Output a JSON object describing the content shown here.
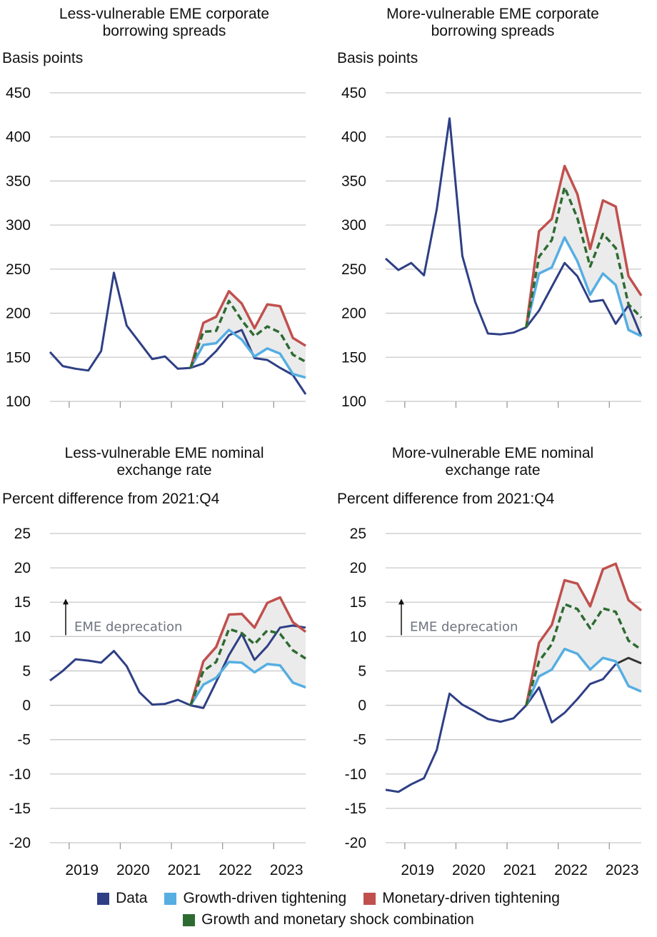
{
  "colors": {
    "data": "#2e3f85",
    "growth": "#56aee2",
    "monetary": "#c0504d",
    "combo": "#2e6b32",
    "band": "#ebebeb",
    "grid": "#c8c8c8",
    "late_data": "#333333"
  },
  "legend": {
    "data": "Data",
    "growth": "Growth-driven tightening",
    "monetary": "Monetary-driven tightening",
    "combo": "Growth and monetary shock combination"
  },
  "x_tick_labels": [
    "2019",
    "2020",
    "2021",
    "2022",
    "2023"
  ],
  "chart_data": [
    {
      "type": "line",
      "title": "Less-vulnerable EME corporate borrowing spreads",
      "ylabel": "Basis points",
      "ylim": [
        100,
        450
      ],
      "yticks": [
        100,
        150,
        200,
        250,
        300,
        350,
        400,
        450
      ],
      "series": [
        {
          "name": "Data",
          "color_key": "data",
          "start_q": 0,
          "values": [
            156,
            140,
            137,
            135,
            157,
            246,
            186,
            167,
            148,
            151,
            137,
            138,
            143,
            157,
            175,
            181,
            149,
            147,
            138,
            130,
            108
          ]
        },
        {
          "name": "Growth-driven tightening",
          "color_key": "growth",
          "start_q": 11,
          "values": [
            138,
            164,
            166,
            181,
            170,
            151,
            160,
            154,
            131,
            127
          ]
        },
        {
          "name": "Monetary-driven tightening",
          "color_key": "monetary",
          "start_q": 11,
          "values": [
            138,
            189,
            196,
            225,
            211,
            183,
            210,
            208,
            172,
            163
          ]
        },
        {
          "name": "Growth and monetary shock combination",
          "color_key": "combo",
          "start_q": 11,
          "values": [
            138,
            179,
            180,
            214,
            192,
            174,
            185,
            178,
            153,
            145
          ]
        }
      ]
    },
    {
      "type": "line",
      "title": "More-vulnerable EME corporate borrowing spreads",
      "ylabel": "Basis points",
      "ylim": [
        100,
        450
      ],
      "yticks": [
        100,
        150,
        200,
        250,
        300,
        350,
        400,
        450
      ],
      "series": [
        {
          "name": "Data",
          "color_key": "data",
          "start_q": 0,
          "values": [
            262,
            249,
            257,
            243,
            318,
            421,
            265,
            213,
            177,
            176,
            178,
            184,
            203,
            230,
            257,
            242,
            213,
            215,
            188,
            209,
            174
          ]
        },
        {
          "name": "Growth-driven tightening",
          "color_key": "growth",
          "start_q": 11,
          "values": [
            184,
            245,
            252,
            286,
            259,
            221,
            245,
            232,
            181,
            174
          ]
        },
        {
          "name": "Monetary-driven tightening",
          "color_key": "monetary",
          "start_q": 11,
          "values": [
            184,
            293,
            307,
            367,
            335,
            273,
            328,
            321,
            242,
            220
          ]
        },
        {
          "name": "Growth and monetary shock combination",
          "color_key": "combo",
          "start_q": 11,
          "values": [
            184,
            264,
            283,
            343,
            308,
            253,
            290,
            274,
            210,
            195
          ]
        }
      ]
    },
    {
      "type": "line",
      "title": "Less-vulnerable EME nominal exchange rate",
      "ylabel": "Percent difference from 2021:Q4",
      "annotation": "EME deprecation",
      "ylim": [
        -20,
        25
      ],
      "yticks": [
        -20,
        -15,
        -10,
        -5,
        0,
        5,
        10,
        15,
        20,
        25
      ],
      "series": [
        {
          "name": "Data",
          "color_key": "data",
          "start_q": 0,
          "values": [
            3.6,
            5.0,
            6.7,
            6.5,
            6.2,
            7.9,
            5.7,
            1.9,
            0.1,
            0.2,
            0.8,
            0.0,
            -0.4,
            3.4,
            7.3,
            10.4,
            6.6,
            8.6,
            11.3,
            11.6,
            11.3
          ]
        },
        {
          "name": "Growth-driven tightening",
          "color_key": "growth",
          "start_q": 11,
          "values": [
            0.0,
            3.0,
            4.0,
            6.3,
            6.2,
            4.8,
            6.0,
            5.8,
            3.3,
            2.6
          ]
        },
        {
          "name": "Monetary-driven tightening",
          "color_key": "monetary",
          "start_q": 11,
          "values": [
            0.0,
            6.4,
            8.5,
            13.2,
            13.3,
            11.3,
            14.9,
            15.7,
            12.1,
            10.7
          ]
        },
        {
          "name": "Growth and monetary shock combination",
          "color_key": "combo",
          "start_q": 11,
          "values": [
            0.0,
            5.0,
            6.3,
            11.1,
            10.5,
            8.9,
            10.9,
            10.4,
            8.0,
            6.8
          ]
        }
      ]
    },
    {
      "type": "line",
      "title": "More-vulnerable EME nominal exchange rate",
      "ylabel": "Percent difference from 2021:Q4",
      "annotation": "EME deprecation",
      "ylim": [
        -20,
        25
      ],
      "yticks": [
        -20,
        -15,
        -10,
        -5,
        0,
        5,
        10,
        15,
        20,
        25
      ],
      "series": [
        {
          "name": "Data",
          "color_key": "data",
          "start_q": 0,
          "values": [
            -12.3,
            -12.6,
            -11.5,
            -10.6,
            -6.5,
            1.7,
            0.1,
            -0.9,
            -2.0,
            -2.4,
            -1.9,
            0.0,
            2.6,
            -2.5,
            -1.1,
            0.9,
            3.1,
            3.8,
            6.0,
            6.9,
            6.1
          ]
        },
        {
          "name": "Growth-driven tightening",
          "color_key": "growth",
          "start_q": 11,
          "values": [
            0.0,
            4.2,
            5.2,
            8.2,
            7.5,
            5.2,
            6.9,
            6.4,
            2.8,
            2.0
          ]
        },
        {
          "name": "Monetary-driven tightening",
          "color_key": "monetary",
          "start_q": 11,
          "values": [
            0.0,
            9.1,
            11.7,
            18.2,
            17.7,
            14.4,
            19.8,
            20.6,
            15.3,
            13.8
          ]
        },
        {
          "name": "Growth and monetary shock combination",
          "color_key": "combo",
          "start_q": 11,
          "values": [
            0.0,
            6.4,
            8.9,
            14.7,
            14.0,
            11.2,
            14.1,
            13.6,
            9.4,
            8.1
          ]
        }
      ]
    }
  ]
}
